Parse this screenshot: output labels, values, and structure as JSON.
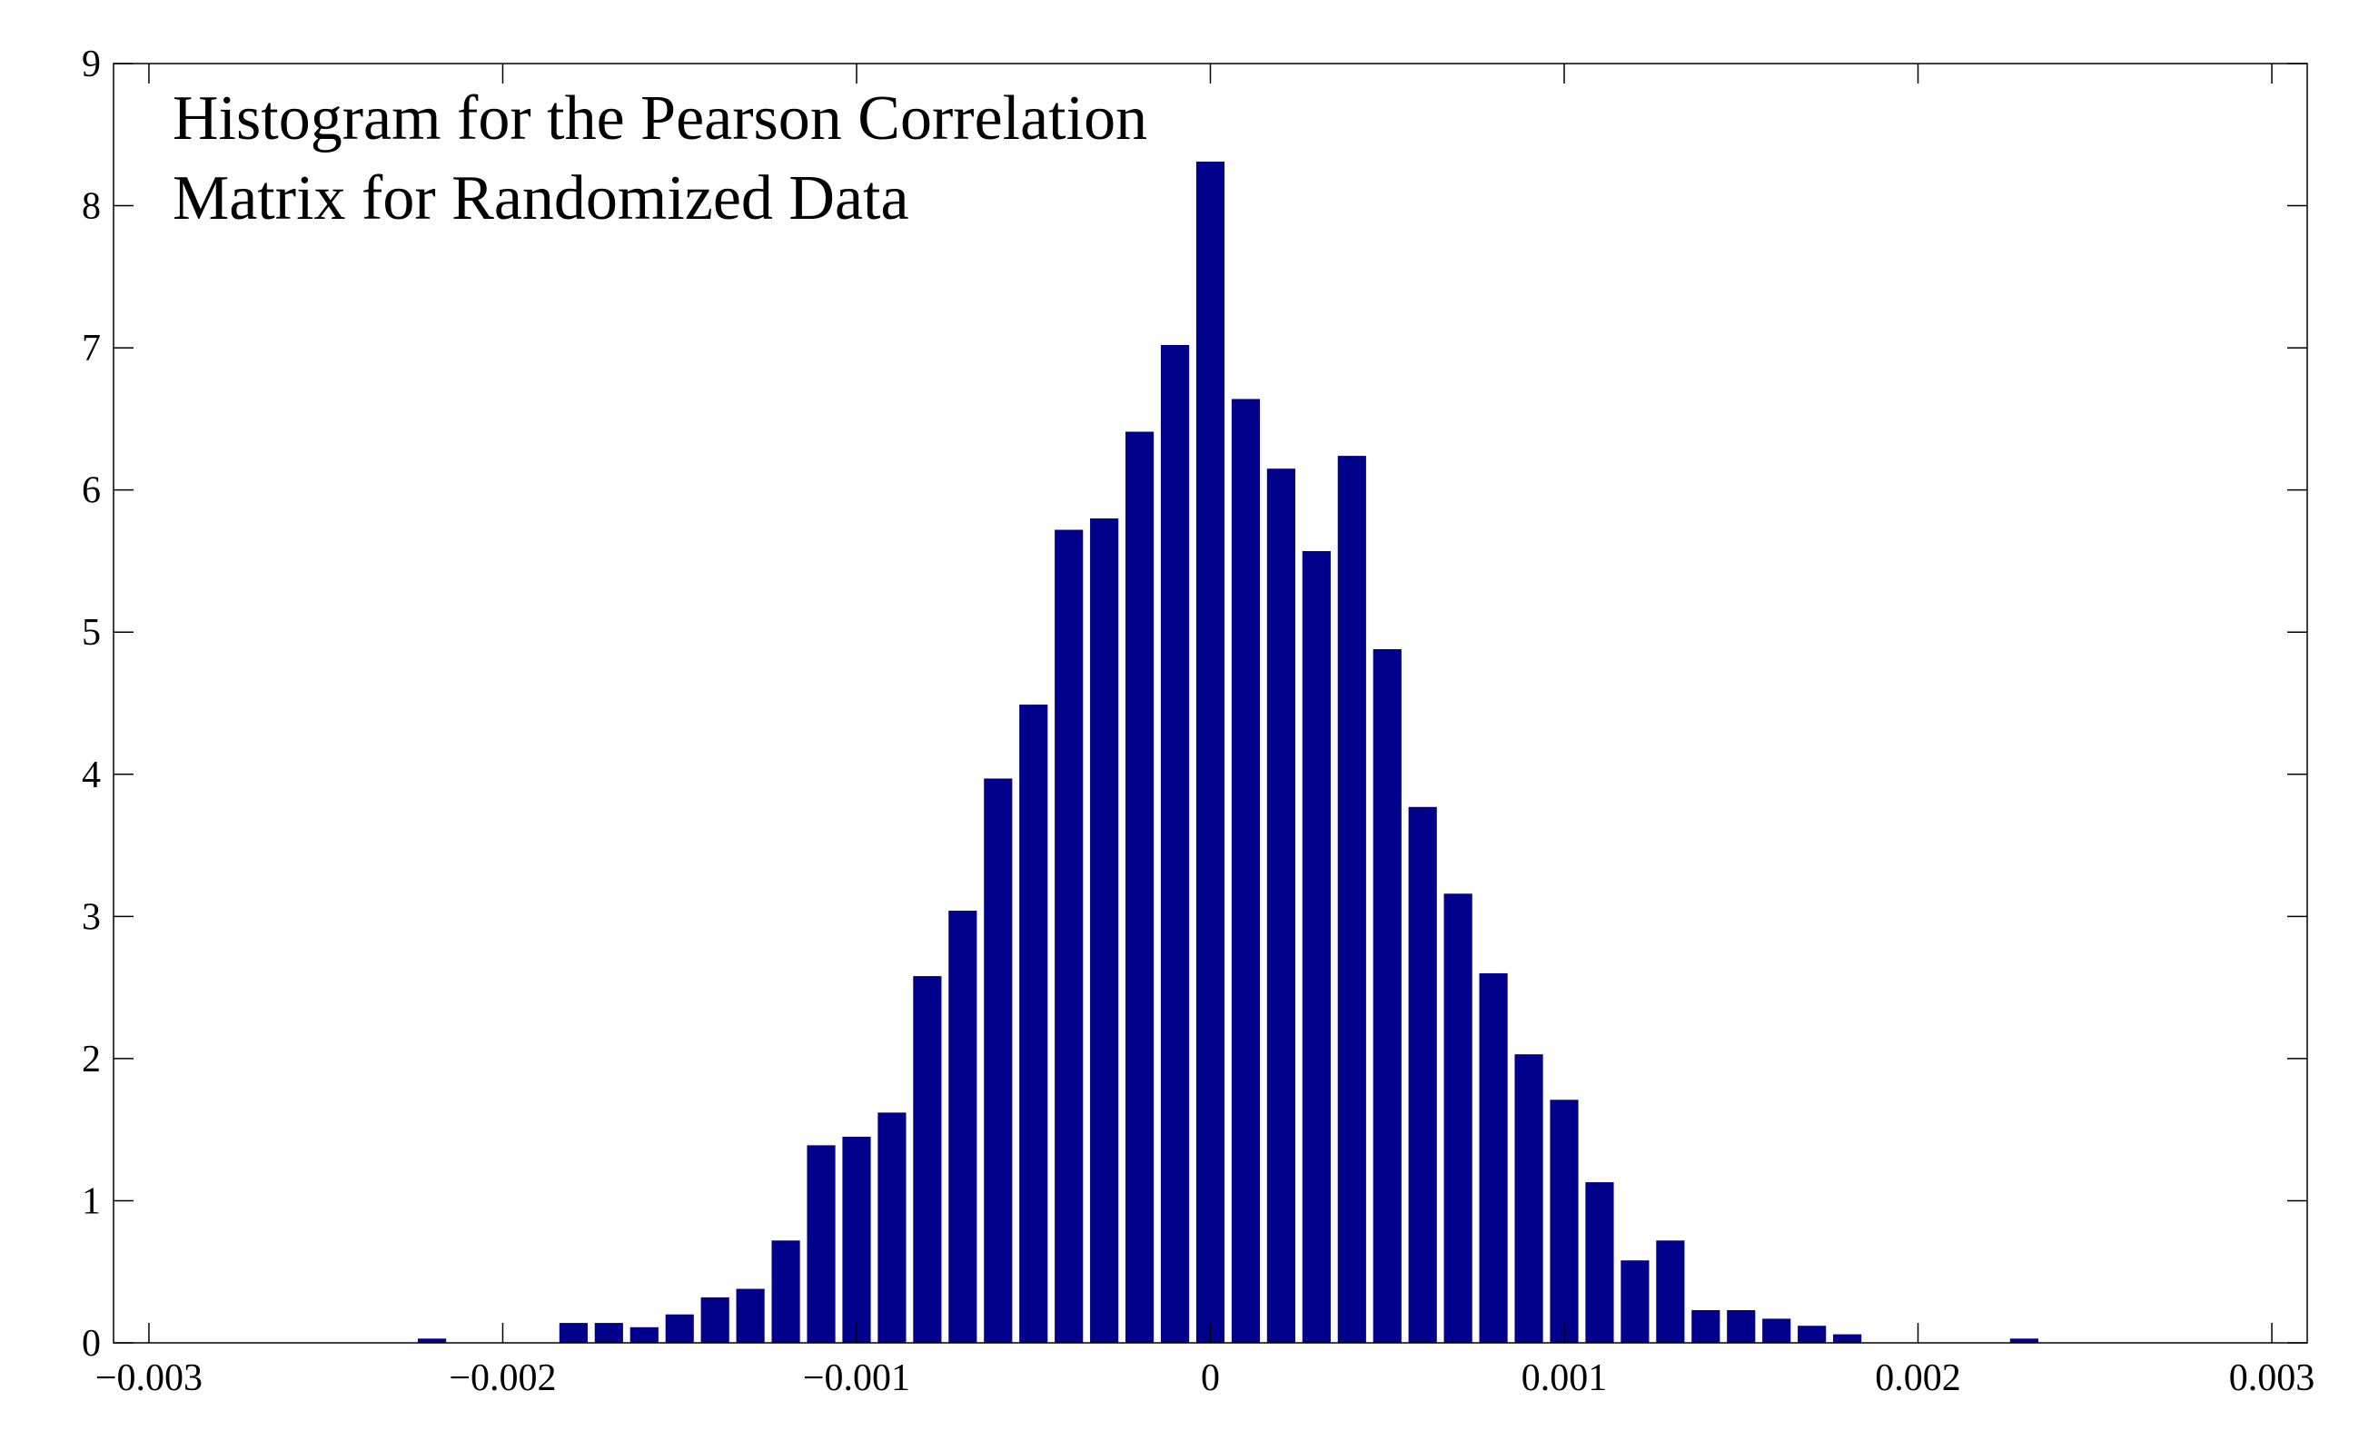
{
  "chart_data": {
    "type": "bar",
    "title_lines": [
      "Histogram for the Pearson Correlation",
      "Matrix for Randomized Data"
    ],
    "xlabel": "",
    "ylabel": "",
    "xlim": [
      -0.0031,
      0.0031
    ],
    "ylim": [
      0,
      9
    ],
    "bin_width": 0.0001,
    "bar_color": "#00008b",
    "grid": false,
    "x_ticks": [
      {
        "value": -0.003,
        "label": "−0.003"
      },
      {
        "value": -0.002,
        "label": "−0.002"
      },
      {
        "value": -0.001,
        "label": "−0.001"
      },
      {
        "value": 0,
        "label": "0"
      },
      {
        "value": 0.001,
        "label": "0.001"
      },
      {
        "value": 0.002,
        "label": "0.002"
      },
      {
        "value": 0.003,
        "label": "0.003"
      }
    ],
    "y_ticks": [
      {
        "value": 0,
        "label": "0"
      },
      {
        "value": 1,
        "label": "1"
      },
      {
        "value": 2,
        "label": "2"
      },
      {
        "value": 3,
        "label": "3"
      },
      {
        "value": 4,
        "label": "4"
      },
      {
        "value": 5,
        "label": "5"
      },
      {
        "value": 6,
        "label": "6"
      },
      {
        "value": 7,
        "label": "7"
      },
      {
        "value": 8,
        "label": "8"
      },
      {
        "value": 9,
        "label": "9"
      }
    ],
    "x": [
      -0.0022,
      -0.0018,
      -0.0017,
      -0.0016,
      -0.0015,
      -0.0014,
      -0.0013,
      -0.0012,
      -0.0011,
      -0.001,
      -0.0009,
      -0.0008,
      -0.0007,
      -0.0006,
      -0.0005,
      -0.0004,
      -0.0003,
      -0.0002,
      -0.0001,
      0.0,
      0.0001,
      0.0002,
      0.0003,
      0.0004,
      0.0005,
      0.0006,
      0.0007,
      0.0008,
      0.0009,
      0.001,
      0.0011,
      0.0012,
      0.0013,
      0.0014,
      0.0015,
      0.0016,
      0.0017,
      0.0018,
      0.0023
    ],
    "values": [
      0.03,
      0.14,
      0.14,
      0.11,
      0.2,
      0.32,
      0.38,
      0.72,
      1.39,
      1.45,
      1.62,
      2.58,
      3.04,
      3.97,
      4.49,
      5.72,
      5.8,
      6.41,
      7.02,
      8.31,
      6.64,
      6.15,
      5.57,
      6.24,
      4.88,
      3.77,
      3.16,
      2.6,
      2.03,
      1.71,
      1.13,
      0.58,
      0.72,
      0.23,
      0.23,
      0.17,
      0.12,
      0.06,
      0.03
    ]
  }
}
